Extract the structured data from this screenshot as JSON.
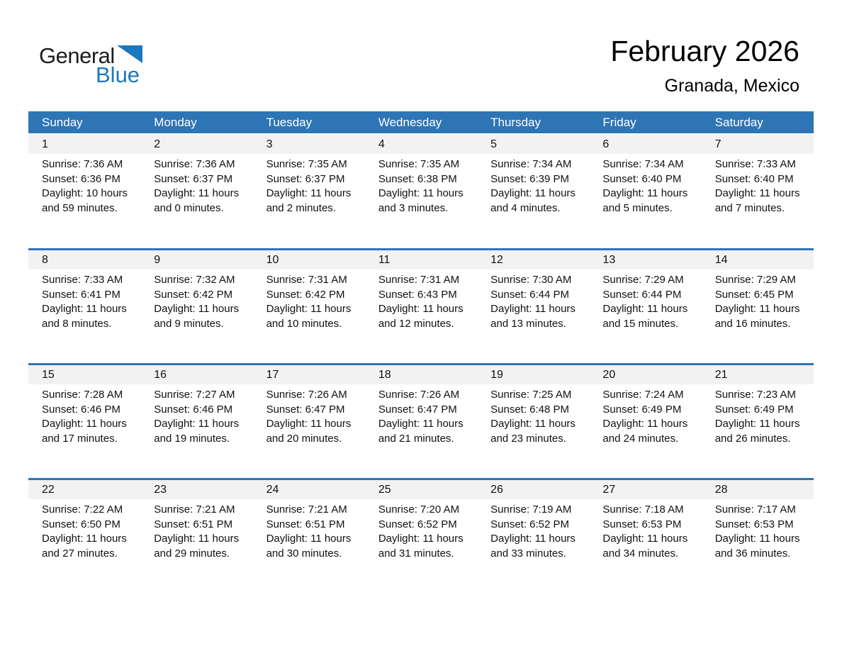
{
  "logo": {
    "general": "General",
    "blue": "Blue"
  },
  "header": {
    "title": "February 2026",
    "location": "Granada, Mexico"
  },
  "colors": {
    "header_blue": "#2E75B6",
    "band_gray": "#F2F2F2",
    "logo_blue": "#1b78be",
    "text": "#111111"
  },
  "calendar": {
    "weekdays": [
      "Sunday",
      "Monday",
      "Tuesday",
      "Wednesday",
      "Thursday",
      "Friday",
      "Saturday"
    ],
    "weeks": [
      [
        {
          "day": "1",
          "sunrise": "Sunrise: 7:36 AM",
          "sunset": "Sunset: 6:36 PM",
          "daylight_line1": "Daylight: 10 hours",
          "daylight_line2": "and 59 minutes."
        },
        {
          "day": "2",
          "sunrise": "Sunrise: 7:36 AM",
          "sunset": "Sunset: 6:37 PM",
          "daylight_line1": "Daylight: 11 hours",
          "daylight_line2": "and 0 minutes."
        },
        {
          "day": "3",
          "sunrise": "Sunrise: 7:35 AM",
          "sunset": "Sunset: 6:37 PM",
          "daylight_line1": "Daylight: 11 hours",
          "daylight_line2": "and 2 minutes."
        },
        {
          "day": "4",
          "sunrise": "Sunrise: 7:35 AM",
          "sunset": "Sunset: 6:38 PM",
          "daylight_line1": "Daylight: 11 hours",
          "daylight_line2": "and 3 minutes."
        },
        {
          "day": "5",
          "sunrise": "Sunrise: 7:34 AM",
          "sunset": "Sunset: 6:39 PM",
          "daylight_line1": "Daylight: 11 hours",
          "daylight_line2": "and 4 minutes."
        },
        {
          "day": "6",
          "sunrise": "Sunrise: 7:34 AM",
          "sunset": "Sunset: 6:40 PM",
          "daylight_line1": "Daylight: 11 hours",
          "daylight_line2": "and 5 minutes."
        },
        {
          "day": "7",
          "sunrise": "Sunrise: 7:33 AM",
          "sunset": "Sunset: 6:40 PM",
          "daylight_line1": "Daylight: 11 hours",
          "daylight_line2": "and 7 minutes."
        }
      ],
      [
        {
          "day": "8",
          "sunrise": "Sunrise: 7:33 AM",
          "sunset": "Sunset: 6:41 PM",
          "daylight_line1": "Daylight: 11 hours",
          "daylight_line2": "and 8 minutes."
        },
        {
          "day": "9",
          "sunrise": "Sunrise: 7:32 AM",
          "sunset": "Sunset: 6:42 PM",
          "daylight_line1": "Daylight: 11 hours",
          "daylight_line2": "and 9 minutes."
        },
        {
          "day": "10",
          "sunrise": "Sunrise: 7:31 AM",
          "sunset": "Sunset: 6:42 PM",
          "daylight_line1": "Daylight: 11 hours",
          "daylight_line2": "and 10 minutes."
        },
        {
          "day": "11",
          "sunrise": "Sunrise: 7:31 AM",
          "sunset": "Sunset: 6:43 PM",
          "daylight_line1": "Daylight: 11 hours",
          "daylight_line2": "and 12 minutes."
        },
        {
          "day": "12",
          "sunrise": "Sunrise: 7:30 AM",
          "sunset": "Sunset: 6:44 PM",
          "daylight_line1": "Daylight: 11 hours",
          "daylight_line2": "and 13 minutes."
        },
        {
          "day": "13",
          "sunrise": "Sunrise: 7:29 AM",
          "sunset": "Sunset: 6:44 PM",
          "daylight_line1": "Daylight: 11 hours",
          "daylight_line2": "and 15 minutes."
        },
        {
          "day": "14",
          "sunrise": "Sunrise: 7:29 AM",
          "sunset": "Sunset: 6:45 PM",
          "daylight_line1": "Daylight: 11 hours",
          "daylight_line2": "and 16 minutes."
        }
      ],
      [
        {
          "day": "15",
          "sunrise": "Sunrise: 7:28 AM",
          "sunset": "Sunset: 6:46 PM",
          "daylight_line1": "Daylight: 11 hours",
          "daylight_line2": "and 17 minutes."
        },
        {
          "day": "16",
          "sunrise": "Sunrise: 7:27 AM",
          "sunset": "Sunset: 6:46 PM",
          "daylight_line1": "Daylight: 11 hours",
          "daylight_line2": "and 19 minutes."
        },
        {
          "day": "17",
          "sunrise": "Sunrise: 7:26 AM",
          "sunset": "Sunset: 6:47 PM",
          "daylight_line1": "Daylight: 11 hours",
          "daylight_line2": "and 20 minutes."
        },
        {
          "day": "18",
          "sunrise": "Sunrise: 7:26 AM",
          "sunset": "Sunset: 6:47 PM",
          "daylight_line1": "Daylight: 11 hours",
          "daylight_line2": "and 21 minutes."
        },
        {
          "day": "19",
          "sunrise": "Sunrise: 7:25 AM",
          "sunset": "Sunset: 6:48 PM",
          "daylight_line1": "Daylight: 11 hours",
          "daylight_line2": "and 23 minutes."
        },
        {
          "day": "20",
          "sunrise": "Sunrise: 7:24 AM",
          "sunset": "Sunset: 6:49 PM",
          "daylight_line1": "Daylight: 11 hours",
          "daylight_line2": "and 24 minutes."
        },
        {
          "day": "21",
          "sunrise": "Sunrise: 7:23 AM",
          "sunset": "Sunset: 6:49 PM",
          "daylight_line1": "Daylight: 11 hours",
          "daylight_line2": "and 26 minutes."
        }
      ],
      [
        {
          "day": "22",
          "sunrise": "Sunrise: 7:22 AM",
          "sunset": "Sunset: 6:50 PM",
          "daylight_line1": "Daylight: 11 hours",
          "daylight_line2": "and 27 minutes."
        },
        {
          "day": "23",
          "sunrise": "Sunrise: 7:21 AM",
          "sunset": "Sunset: 6:51 PM",
          "daylight_line1": "Daylight: 11 hours",
          "daylight_line2": "and 29 minutes."
        },
        {
          "day": "24",
          "sunrise": "Sunrise: 7:21 AM",
          "sunset": "Sunset: 6:51 PM",
          "daylight_line1": "Daylight: 11 hours",
          "daylight_line2": "and 30 minutes."
        },
        {
          "day": "25",
          "sunrise": "Sunrise: 7:20 AM",
          "sunset": "Sunset: 6:52 PM",
          "daylight_line1": "Daylight: 11 hours",
          "daylight_line2": "and 31 minutes."
        },
        {
          "day": "26",
          "sunrise": "Sunrise: 7:19 AM",
          "sunset": "Sunset: 6:52 PM",
          "daylight_line1": "Daylight: 11 hours",
          "daylight_line2": "and 33 minutes."
        },
        {
          "day": "27",
          "sunrise": "Sunrise: 7:18 AM",
          "sunset": "Sunset: 6:53 PM",
          "daylight_line1": "Daylight: 11 hours",
          "daylight_line2": "and 34 minutes."
        },
        {
          "day": "28",
          "sunrise": "Sunrise: 7:17 AM",
          "sunset": "Sunset: 6:53 PM",
          "daylight_line1": "Daylight: 11 hours",
          "daylight_line2": "and 36 minutes."
        }
      ]
    ]
  }
}
